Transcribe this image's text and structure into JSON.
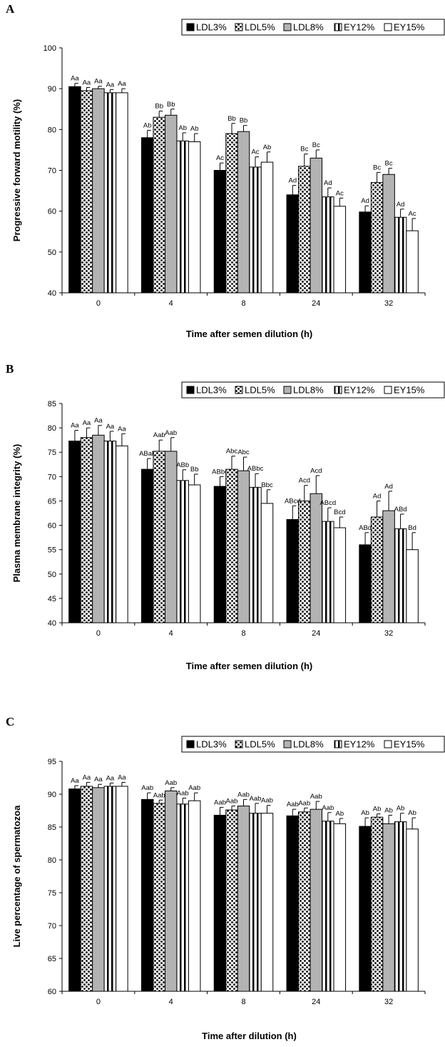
{
  "colors": {
    "LDL3%": "#000000",
    "LDL5%": "#ffffff",
    "LDL8%": "#b3b3b3",
    "EY12%": "#ffffff",
    "EY15%": "#ffffff"
  },
  "patterns": {
    "LDL3%": "solid",
    "LDL5%": "dots",
    "LDL8%": "solid-gray",
    "EY12%": "vertical-stripes",
    "EY15%": "empty"
  },
  "chart_data": [
    {
      "panel": "A",
      "type": "bar",
      "categories": [
        "0",
        "4",
        "8",
        "24",
        "32"
      ],
      "xlabel": "Time after semen dilution (h)",
      "ylabel": "Progressive forward motility (%)",
      "ylim": [
        40,
        100
      ],
      "yticks": [
        40,
        50,
        60,
        70,
        80,
        90,
        100
      ],
      "legend_position": "top-right",
      "grid": false,
      "series": [
        {
          "name": "LDL3%",
          "values": [
            90.5,
            78.0,
            70.0,
            64.0,
            59.8
          ],
          "errors": [
            0.8,
            1.8,
            1.8,
            2.3,
            1.5
          ],
          "labels": [
            "Aa",
            "Ab",
            "Ac",
            "Ad",
            "Ad"
          ]
        },
        {
          "name": "LDL5%",
          "values": [
            89.5,
            83.0,
            79.0,
            71.0,
            67.0
          ],
          "errors": [
            0.8,
            1.5,
            2.5,
            3.0,
            2.5
          ],
          "labels": [
            "Aa",
            "Bb",
            "Bb",
            "Bc",
            "Bc"
          ]
        },
        {
          "name": "LDL8%",
          "values": [
            90.0,
            83.5,
            79.5,
            73.0,
            69.0
          ],
          "errors": [
            0.6,
            1.5,
            1.5,
            2.0,
            1.5
          ],
          "labels": [
            "Aa",
            "Bb",
            "Bb",
            "Bc",
            "Bc"
          ]
        },
        {
          "name": "EY12%",
          "values": [
            89.0,
            77.2,
            70.8,
            63.5,
            58.5
          ],
          "errors": [
            0.8,
            2.0,
            2.5,
            2.2,
            2.0
          ],
          "labels": [
            "Aa",
            "Ab",
            "Ac",
            "Ad",
            "Ad"
          ]
        },
        {
          "name": "EY15%",
          "values": [
            89.0,
            77.0,
            72.0,
            61.2,
            55.2
          ],
          "errors": [
            1.0,
            2.0,
            2.5,
            2.0,
            3.0
          ],
          "labels": [
            "Aa",
            "Ab",
            "Ab",
            "Ac",
            "Ac"
          ]
        }
      ]
    },
    {
      "panel": "B",
      "type": "bar",
      "categories": [
        "0",
        "4",
        "8",
        "24",
        "32"
      ],
      "xlabel": "Time after semen dilution (h)",
      "ylabel": "Plasma membrane integrity (%)",
      "ylim": [
        40,
        85
      ],
      "yticks": [
        40,
        45,
        50,
        55,
        60,
        65,
        70,
        75,
        80,
        85
      ],
      "legend_position": "top-right",
      "grid": false,
      "series": [
        {
          "name": "LDL3%",
          "values": [
            77.3,
            71.5,
            68.0,
            61.2,
            56.0
          ],
          "errors": [
            2.2,
            2.2,
            2.0,
            2.8,
            2.5
          ],
          "labels": [
            "Aa",
            "ABab",
            "ABbc",
            "ABcd",
            "ABd"
          ]
        },
        {
          "name": "LDL5%",
          "values": [
            78.0,
            75.2,
            71.5,
            65.0,
            61.7
          ],
          "errors": [
            2.0,
            2.3,
            2.7,
            3.2,
            3.3
          ],
          "labels": [
            "Aa",
            "Aab",
            "Abc",
            "Acd",
            "Ad"
          ]
        },
        {
          "name": "LDL8%",
          "values": [
            78.5,
            75.2,
            71.2,
            66.5,
            63.0
          ],
          "errors": [
            2.0,
            2.8,
            2.8,
            3.7,
            4.0
          ],
          "labels": [
            "Aa",
            "Aab",
            "Abc",
            "Acd",
            "Ad"
          ]
        },
        {
          "name": "EY12%",
          "values": [
            77.3,
            69.2,
            67.8,
            60.8,
            59.3
          ],
          "errors": [
            2.0,
            2.2,
            2.8,
            2.8,
            3.0
          ],
          "labels": [
            "Aa",
            "ABb",
            "ABbc",
            "ABcd",
            "ABd"
          ]
        },
        {
          "name": "EY15%",
          "values": [
            76.3,
            68.3,
            64.5,
            59.5,
            55.0
          ],
          "errors": [
            2.5,
            2.2,
            2.8,
            2.2,
            3.5
          ],
          "labels": [
            "Aa",
            "Bb",
            "Bbc",
            "Bcd",
            "Bd"
          ]
        }
      ]
    },
    {
      "panel": "C",
      "type": "bar",
      "categories": [
        "0",
        "4",
        "8",
        "24",
        "32"
      ],
      "xlabel": "Time after dilution (h)",
      "ylabel": "Live percentage of spermatozoa",
      "ylim": [
        60,
        95
      ],
      "yticks": [
        60,
        65,
        70,
        75,
        80,
        85,
        90,
        95
      ],
      "legend_position": "top-right",
      "grid": false,
      "series": [
        {
          "name": "LDL3%",
          "values": [
            90.8,
            89.2,
            86.8,
            86.7,
            85.1
          ],
          "errors": [
            0.5,
            1.0,
            1.2,
            1.0,
            1.3
          ],
          "labels": [
            "Aa",
            "Aab",
            "Aab",
            "Aab",
            "Ab"
          ]
        },
        {
          "name": "LDL5%",
          "values": [
            91.2,
            88.6,
            87.6,
            87.3,
            86.5
          ],
          "errors": [
            0.6,
            0.5,
            0.6,
            0.6,
            0.5
          ],
          "labels": [
            "Aa",
            "Aab",
            "Aab",
            "Aab",
            "Ab"
          ]
        },
        {
          "name": "LDL8%",
          "values": [
            91.0,
            90.5,
            88.2,
            87.7,
            85.5
          ],
          "errors": [
            0.5,
            0.5,
            1.0,
            1.2,
            1.3
          ],
          "labels": [
            "Aa",
            "Aab",
            "Aab",
            "Aab",
            "Ab"
          ]
        },
        {
          "name": "EY12%",
          "values": [
            91.2,
            88.5,
            87.1,
            85.9,
            85.8
          ],
          "errors": [
            0.5,
            0.9,
            1.5,
            1.3,
            1.3
          ],
          "labels": [
            "Aa",
            "Aab",
            "Aab",
            "Aab",
            "Ab"
          ]
        },
        {
          "name": "EY15%",
          "values": [
            91.2,
            89.0,
            87.1,
            85.5,
            84.7
          ],
          "errors": [
            0.6,
            1.2,
            1.2,
            0.8,
            1.7
          ],
          "labels": [
            "Aa",
            "Aab",
            "Aab",
            "Ab",
            "Ab"
          ]
        }
      ]
    }
  ]
}
